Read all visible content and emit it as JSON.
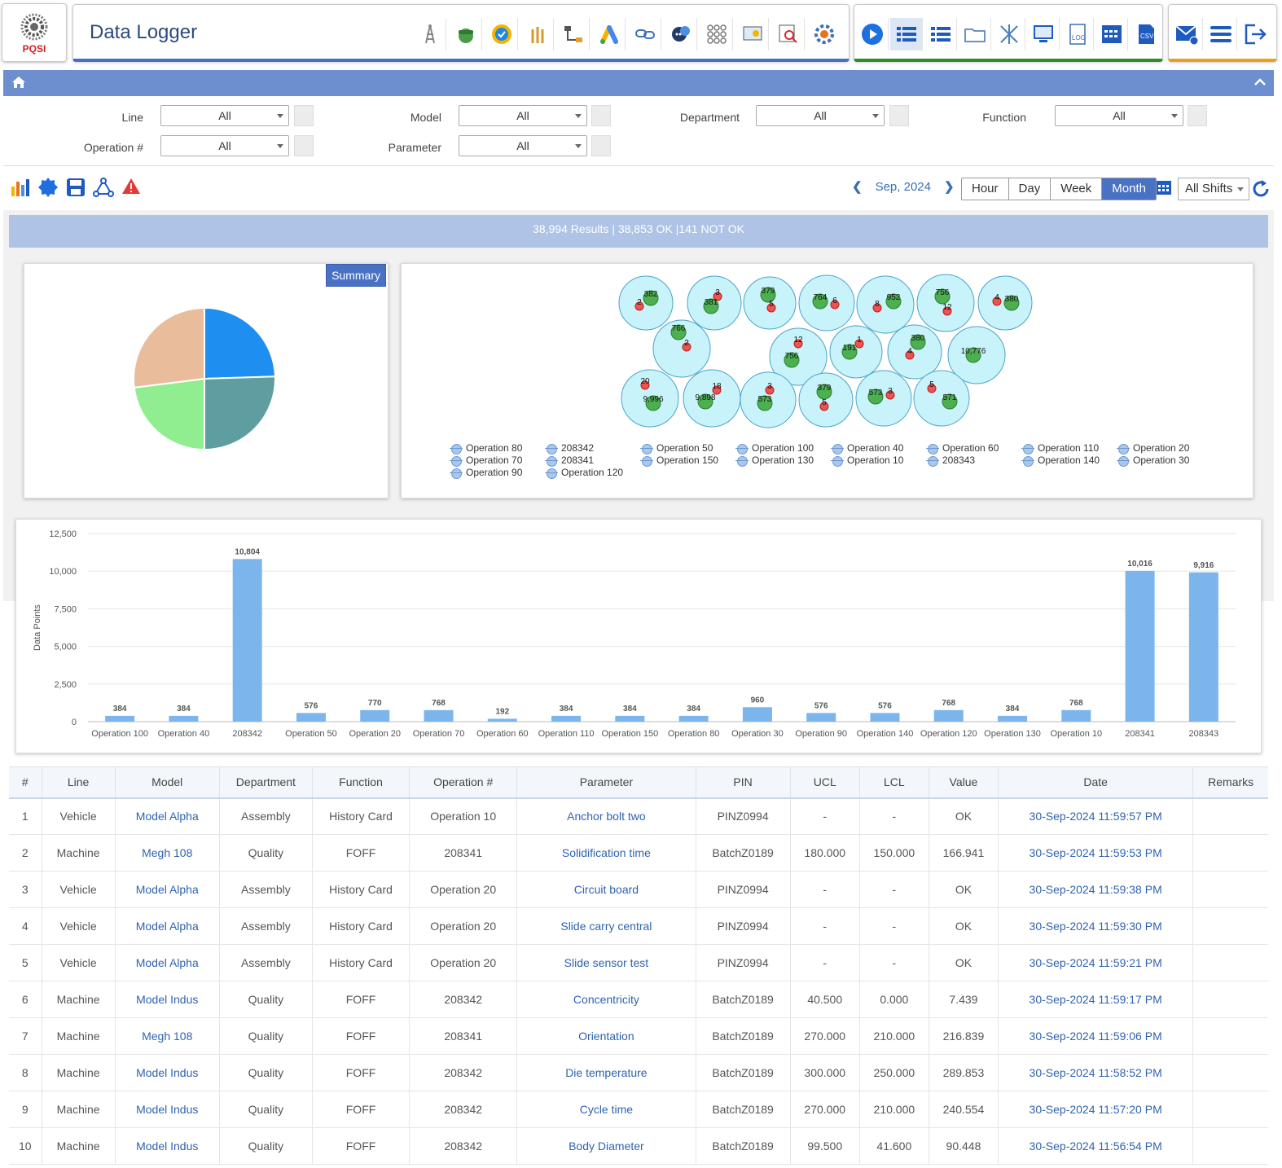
{
  "header": {
    "logo_text": "PQSI",
    "title": "Data Logger"
  },
  "filters": {
    "line_label": "Line",
    "line_value": "All",
    "model_label": "Model",
    "model_value": "All",
    "department_label": "Department",
    "department_value": "All",
    "function_label": "Function",
    "function_value": "All",
    "operation_label": "Operation #",
    "operation_value": "All",
    "parameter_label": "Parameter",
    "parameter_value": "All"
  },
  "toolbar": {
    "period": "Sep, 2024",
    "ranges": [
      "Hour",
      "Day",
      "Week",
      "Month"
    ],
    "active_range": "Month",
    "shift": "All Shifts"
  },
  "results_text": "38,994 Results | 38,853 OK |141 NOT OK",
  "summary_button": "Summary",
  "pie": {
    "colors": [
      "#1f8ef1",
      "#5f9ea0",
      "#90ee90",
      "#e9bc9b"
    ],
    "values": [
      24.5,
      25.5,
      23,
      27
    ]
  },
  "bubble": {
    "bubbles": [
      {
        "ok": "382",
        "nok": "2"
      },
      {
        "ok": "381",
        "nok": "3"
      },
      {
        "ok": "379",
        "nok": "5"
      },
      {
        "ok": "764",
        "nok": "6"
      },
      {
        "ok": "952",
        "nok": "8"
      },
      {
        "ok": "756",
        "nok": "12"
      },
      {
        "ok": "380",
        "nok": "4"
      },
      {
        "ok": "766",
        "nok": "2"
      },
      {
        "ok": "756",
        "nok": "12"
      },
      {
        "ok": "191",
        "nok": "1"
      },
      {
        "ok": "380",
        "nok": "4"
      },
      {
        "ok": "10,776",
        "nok": ""
      },
      {
        "ok": "9,996",
        "nok": "20"
      },
      {
        "ok": "9,898",
        "nok": "18"
      },
      {
        "ok": "573",
        "nok": "3"
      },
      {
        "ok": "379",
        "nok": "5"
      },
      {
        "ok": "573",
        "nok": "3"
      },
      {
        "ok": "571",
        "nok": "5"
      }
    ],
    "legend": [
      [
        "Operation 80",
        "Operation 70",
        "Operation 90"
      ],
      [
        "208342",
        "208341",
        "Operation 120"
      ],
      [
        "Operation 50",
        "Operation 150"
      ],
      [
        "Operation 100",
        "Operation 130"
      ],
      [
        "Operation 40",
        "Operation 10"
      ],
      [
        "Operation 60",
        "208343"
      ],
      [
        "Operation 110",
        "Operation 140"
      ],
      [
        "Operation 20",
        "Operation 30"
      ]
    ],
    "colors": {
      "bubble_fill": "#c8f3fb",
      "bubble_stroke": "#4aa3c9",
      "ok": "#4caf50",
      "nok": "#ef5350"
    }
  },
  "chart_data": {
    "type": "bar",
    "categories": [
      "Operation 100",
      "Operation 40",
      "208342",
      "Operation 50",
      "Operation 20",
      "Operation 70",
      "Operation 60",
      "Operation 110",
      "Operation 150",
      "Operation 80",
      "Operation 30",
      "Operation 90",
      "Operation 140",
      "Operation 120",
      "Operation 130",
      "Operation 10",
      "208341",
      "208343"
    ],
    "values": [
      384,
      384,
      10804,
      576,
      770,
      768,
      192,
      384,
      384,
      384,
      960,
      576,
      576,
      768,
      384,
      768,
      10016,
      9916
    ],
    "value_labels": [
      "384",
      "384",
      "10,804",
      "576",
      "770",
      "768",
      "192",
      "384",
      "384",
      "384",
      "960",
      "576",
      "576",
      "768",
      "384",
      "768",
      "10,016",
      "9,916"
    ],
    "ylabel": "Data Points",
    "ylim": [
      0,
      12500
    ],
    "yticks": [
      "0",
      "2,500",
      "5,000",
      "7,500",
      "10,000",
      "12,500"
    ],
    "ytick_values": [
      0,
      2500,
      5000,
      7500,
      10000,
      12500
    ],
    "bar_color": "#7cb5ec",
    "grid": true
  },
  "table": {
    "headers": [
      "#",
      "Line",
      "Model",
      "Department",
      "Function",
      "Operation #",
      "Parameter",
      "PIN",
      "UCL",
      "LCL",
      "Value",
      "Date",
      "Remarks"
    ],
    "rows": [
      [
        "1",
        "Vehicle",
        "Model Alpha",
        "Assembly",
        "History Card",
        "Operation 10",
        "Anchor bolt two",
        "PINZ0994",
        "-",
        "-",
        "OK",
        "30-Sep-2024 11:59:57 PM",
        ""
      ],
      [
        "2",
        "Machine",
        "Megh 108",
        "Quality",
        "FOFF",
        "208341",
        "Solidification time",
        "BatchZ0189",
        "180.000",
        "150.000",
        "166.941",
        "30-Sep-2024 11:59:53 PM",
        ""
      ],
      [
        "3",
        "Vehicle",
        "Model Alpha",
        "Assembly",
        "History Card",
        "Operation 20",
        "Circuit board",
        "PINZ0994",
        "-",
        "-",
        "OK",
        "30-Sep-2024 11:59:38 PM",
        ""
      ],
      [
        "4",
        "Vehicle",
        "Model Alpha",
        "Assembly",
        "History Card",
        "Operation 20",
        "Slide carry central",
        "PINZ0994",
        "-",
        "-",
        "OK",
        "30-Sep-2024 11:59:30 PM",
        ""
      ],
      [
        "5",
        "Vehicle",
        "Model Alpha",
        "Assembly",
        "History Card",
        "Operation 20",
        "Slide sensor test",
        "PINZ0994",
        "-",
        "-",
        "OK",
        "30-Sep-2024 11:59:21 PM",
        ""
      ],
      [
        "6",
        "Machine",
        "Model Indus",
        "Quality",
        "FOFF",
        "208342",
        "Concentricity",
        "BatchZ0189",
        "40.500",
        "0.000",
        "7.439",
        "30-Sep-2024 11:59:17 PM",
        ""
      ],
      [
        "7",
        "Machine",
        "Megh 108",
        "Quality",
        "FOFF",
        "208341",
        "Orientation",
        "BatchZ0189",
        "270.000",
        "210.000",
        "216.839",
        "30-Sep-2024 11:59:06 PM",
        ""
      ],
      [
        "8",
        "Machine",
        "Model Indus",
        "Quality",
        "FOFF",
        "208342",
        "Die temperature",
        "BatchZ0189",
        "300.000",
        "250.000",
        "289.853",
        "30-Sep-2024 11:58:52 PM",
        ""
      ],
      [
        "9",
        "Machine",
        "Model Indus",
        "Quality",
        "FOFF",
        "208342",
        "Cycle time",
        "BatchZ0189",
        "270.000",
        "210.000",
        "240.554",
        "30-Sep-2024 11:57:20 PM",
        ""
      ],
      [
        "10",
        "Machine",
        "Model Indus",
        "Quality",
        "FOFF",
        "208342",
        "Body Diameter",
        "BatchZ0189",
        "99.500",
        "41.600",
        "90.448",
        "30-Sep-2024 11:56:54 PM",
        ""
      ]
    ]
  }
}
